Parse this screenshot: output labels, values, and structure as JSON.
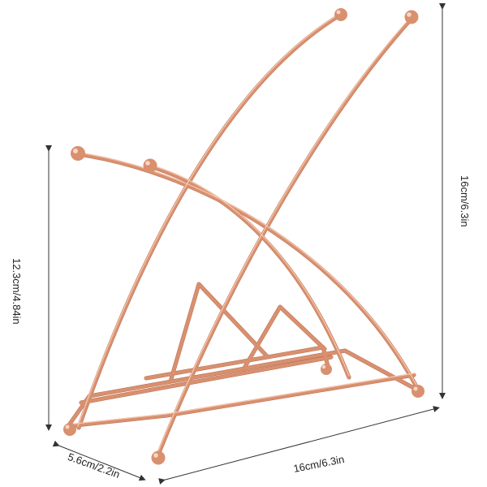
{
  "image": {
    "subject": "rose-gold-wire-stand-icon",
    "colors": {
      "wire": "#d9906f",
      "wire_highlight": "#f4c7ae",
      "wire_shadow": "#b66c4e",
      "dimension_line": "#333333",
      "background": "#ffffff"
    }
  },
  "dimensions": {
    "height_left": "12.3cm/4.84in",
    "height_right": "16cm/6.3in",
    "width_bottom": "16cm/6.3in",
    "depth_bottom": "5.6cm/2.2in"
  }
}
